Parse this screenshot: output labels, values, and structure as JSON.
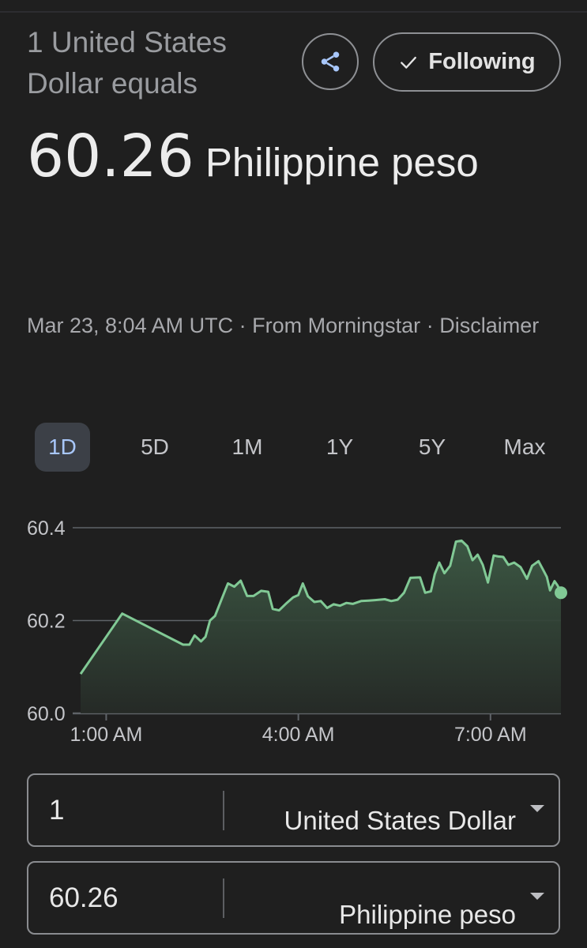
{
  "header": {
    "prefix": "1 United States Dollar equals",
    "rate": "60.26",
    "currency": "Philippine peso"
  },
  "actions": {
    "share_icon": "share-icon",
    "follow_label": "Following",
    "follow_icon": "check-icon"
  },
  "meta": {
    "timestamp": "Mar 23, 8:04 AM UTC",
    "source": "From Morningstar",
    "disclaimer": "Disclaimer",
    "separator": "·"
  },
  "range_tabs": [
    {
      "label": "1D",
      "active": true
    },
    {
      "label": "5D",
      "active": false
    },
    {
      "label": "1M",
      "active": false
    },
    {
      "label": "1Y",
      "active": false
    },
    {
      "label": "5Y",
      "active": false
    },
    {
      "label": "Max",
      "active": false
    }
  ],
  "colors": {
    "line": "#81c995",
    "fill_top": "#3d5a45",
    "fill_bottom": "#262b27",
    "grid": "#5f6368",
    "active_tab": "#a8c7fa"
  },
  "chart_data": {
    "type": "area",
    "y_ticks": [
      "60.4",
      "60.2",
      "60.0"
    ],
    "y_tick_values": [
      60.4,
      60.2,
      60.0
    ],
    "ylim": [
      60.0,
      60.4
    ],
    "x_ticks": [
      "1:00 AM",
      "4:00 AM",
      "7:00 AM"
    ],
    "x_tick_values": [
      1.0,
      4.0,
      7.0
    ],
    "xlim": [
      0.6,
      8.1
    ],
    "grid": true,
    "points": [
      [
        0.6,
        60.085
      ],
      [
        1.25,
        60.215
      ],
      [
        2.2,
        60.148
      ],
      [
        2.3,
        60.148
      ],
      [
        2.38,
        60.168
      ],
      [
        2.48,
        60.155
      ],
      [
        2.55,
        60.165
      ],
      [
        2.62,
        60.2
      ],
      [
        2.7,
        60.21
      ],
      [
        2.8,
        60.245
      ],
      [
        2.9,
        60.28
      ],
      [
        3.0,
        60.273
      ],
      [
        3.1,
        60.286
      ],
      [
        3.2,
        60.253
      ],
      [
        3.3,
        60.253
      ],
      [
        3.42,
        60.264
      ],
      [
        3.53,
        60.262
      ],
      [
        3.6,
        60.225
      ],
      [
        3.7,
        60.222
      ],
      [
        3.82,
        60.238
      ],
      [
        3.92,
        60.25
      ],
      [
        4.0,
        60.255
      ],
      [
        4.07,
        60.28
      ],
      [
        4.15,
        60.252
      ],
      [
        4.25,
        60.24
      ],
      [
        4.35,
        60.242
      ],
      [
        4.45,
        60.227
      ],
      [
        4.55,
        60.235
      ],
      [
        4.65,
        60.232
      ],
      [
        4.75,
        60.238
      ],
      [
        4.85,
        60.236
      ],
      [
        4.98,
        60.242
      ],
      [
        5.1,
        60.243
      ],
      [
        5.2,
        60.244
      ],
      [
        5.35,
        60.246
      ],
      [
        5.45,
        60.242
      ],
      [
        5.55,
        60.245
      ],
      [
        5.65,
        60.26
      ],
      [
        5.75,
        60.292
      ],
      [
        5.9,
        60.293
      ],
      [
        5.98,
        60.26
      ],
      [
        6.07,
        60.263
      ],
      [
        6.13,
        60.3
      ],
      [
        6.2,
        60.325
      ],
      [
        6.28,
        60.302
      ],
      [
        6.37,
        60.318
      ],
      [
        6.46,
        60.37
      ],
      [
        6.55,
        60.372
      ],
      [
        6.64,
        60.36
      ],
      [
        6.72,
        60.33
      ],
      [
        6.8,
        60.342
      ],
      [
        6.88,
        60.32
      ],
      [
        6.96,
        60.282
      ],
      [
        7.05,
        60.34
      ],
      [
        7.12,
        60.338
      ],
      [
        7.2,
        60.337
      ],
      [
        7.28,
        60.32
      ],
      [
        7.37,
        60.325
      ],
      [
        7.47,
        60.315
      ],
      [
        7.57,
        60.29
      ],
      [
        7.65,
        60.318
      ],
      [
        7.75,
        60.328
      ],
      [
        7.82,
        60.31
      ],
      [
        7.88,
        60.294
      ],
      [
        7.93,
        60.265
      ],
      [
        8.0,
        60.285
      ],
      [
        8.05,
        60.275
      ],
      [
        8.1,
        60.26
      ]
    ]
  },
  "converter": {
    "from": {
      "amount": "1",
      "unit": "United States Dollar"
    },
    "to": {
      "amount": "60.26",
      "unit": "Philippine peso"
    }
  }
}
